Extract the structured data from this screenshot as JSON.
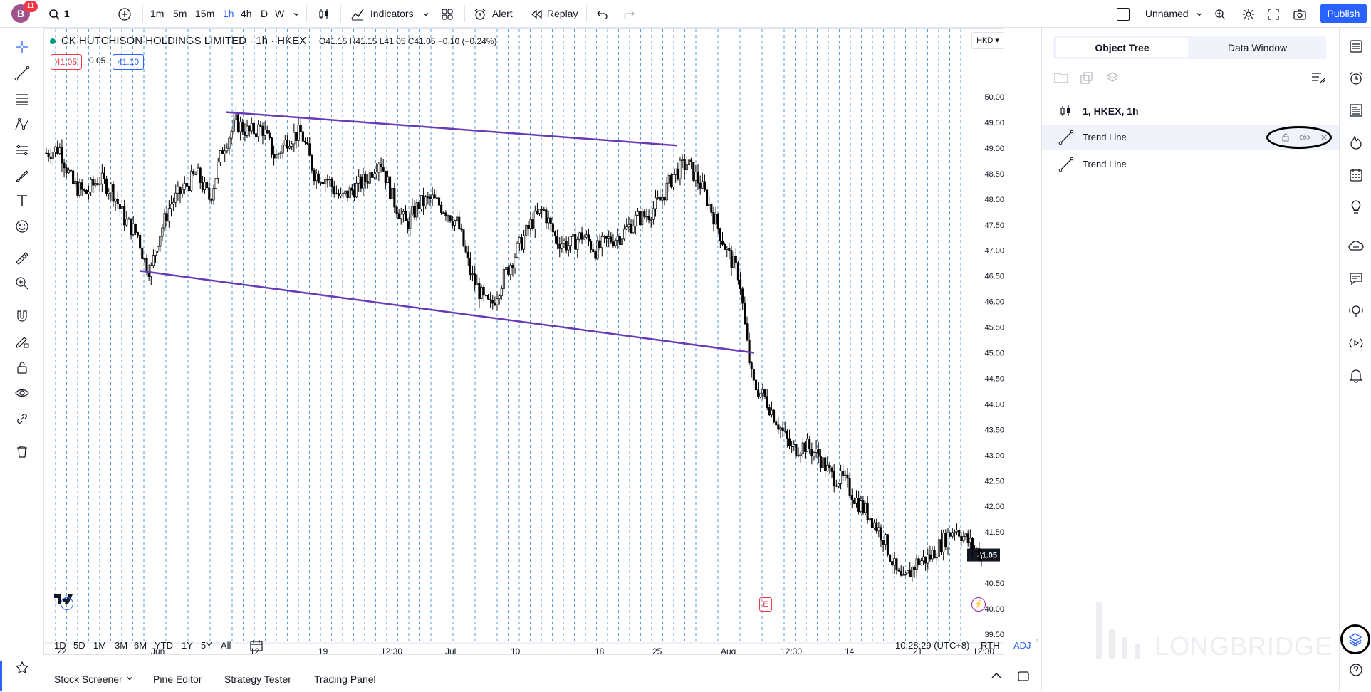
{
  "topbar": {
    "avatar_letter": "B",
    "notif_count": "11",
    "symbol_search": "1",
    "intervals": [
      "1m",
      "5m",
      "15m",
      "1h",
      "4h",
      "D",
      "W"
    ],
    "active_interval": "1h",
    "indicators_label": "Indicators",
    "alert_label": "Alert",
    "replay_label": "Replay",
    "layout_name": "Unnamed",
    "publish_label": "Publish"
  },
  "legend": {
    "title": "CK HUTCHISON HOLDINGS LIMITED · 1h · HKEX",
    "ohlc": "O41.15 H41.15 L41.05 C41.05 −0.10 (−0.24%)",
    "bid": "41.05",
    "spread": "0.05",
    "ask": "41.10"
  },
  "chart": {
    "currency": "HKD",
    "price_ticks": [
      "50.00",
      "49.50",
      "49.00",
      "48.50",
      "48.00",
      "47.50",
      "47.00",
      "46.50",
      "46.00",
      "45.50",
      "45.00",
      "44.50",
      "44.00",
      "43.50",
      "43.00",
      "42.50",
      "42.00",
      "41.50",
      "41.05",
      "40.50",
      "40.00",
      "39.50"
    ],
    "last_price": "41.05",
    "time_ticks": [
      "22",
      "Jun",
      "12",
      "19",
      "12:30",
      "Jul",
      "10",
      "18",
      "25",
      "Aug",
      "12:30",
      "14",
      "21",
      "12:30"
    ],
    "ranges": [
      "1D",
      "5D",
      "1M",
      "3M",
      "6M",
      "YTD",
      "1Y",
      "5Y",
      "All"
    ],
    "clock": "10:28:29 (UTC+8)",
    "session": "RTH",
    "adj": "ADJ",
    "earnings_marker": "E",
    "line_color": "#673ab7"
  },
  "bottom_tabs": [
    "Stock Screener",
    "Pine Editor",
    "Strategy Tester",
    "Trading Panel"
  ],
  "panel": {
    "tabs": [
      "Object Tree",
      "Data Window"
    ],
    "active_tab": "Object Tree",
    "items": [
      {
        "label": "1, HKEX, 1h",
        "icon": "candles-icon"
      },
      {
        "label": "Trend Line",
        "icon": "trend-line-icon",
        "selected": true
      },
      {
        "label": "Trend Line",
        "icon": "trend-line-icon"
      }
    ],
    "watermark": "LONGBRIDGE"
  },
  "chart_data": {
    "type": "candlestick",
    "ylim": [
      39.5,
      50.0
    ],
    "price_path": [
      [
        0,
        48.9
      ],
      [
        2,
        49.0
      ],
      [
        4,
        48.3
      ],
      [
        6,
        48.1
      ],
      [
        8,
        48.4
      ],
      [
        10,
        48.2
      ],
      [
        12,
        47.6
      ],
      [
        14,
        47.3
      ],
      [
        15,
        46.8
      ],
      [
        16,
        46.6
      ],
      [
        17,
        47.2
      ],
      [
        19,
        47.9
      ],
      [
        21,
        48.2
      ],
      [
        23,
        48.5
      ],
      [
        25,
        48.0
      ],
      [
        27,
        49.0
      ],
      [
        29,
        49.5
      ],
      [
        31,
        49.3
      ],
      [
        33,
        49.4
      ],
      [
        35,
        48.8
      ],
      [
        37,
        49.2
      ],
      [
        39,
        49.3
      ],
      [
        41,
        48.5
      ],
      [
        43,
        48.4
      ],
      [
        45,
        48.0
      ],
      [
        47,
        48.2
      ],
      [
        49,
        48.4
      ],
      [
        51,
        48.8
      ],
      [
        53,
        48.0
      ],
      [
        55,
        47.5
      ],
      [
        57,
        47.9
      ],
      [
        59,
        48.0
      ],
      [
        61,
        47.8
      ],
      [
        63,
        47.5
      ],
      [
        65,
        46.5
      ],
      [
        67,
        46.0
      ],
      [
        68,
        45.9
      ],
      [
        70,
        46.5
      ],
      [
        72,
        47.0
      ],
      [
        74,
        47.5
      ],
      [
        76,
        47.8
      ],
      [
        78,
        47.2
      ],
      [
        80,
        47.1
      ],
      [
        82,
        47.3
      ],
      [
        84,
        47.0
      ],
      [
        86,
        47.2
      ],
      [
        88,
        47.3
      ],
      [
        90,
        47.6
      ],
      [
        92,
        47.7
      ],
      [
        94,
        48.0
      ],
      [
        96,
        48.5
      ],
      [
        98,
        48.7
      ],
      [
        100,
        48.3
      ],
      [
        102,
        47.7
      ],
      [
        104,
        47.0
      ],
      [
        106,
        46.5
      ],
      [
        107,
        45.3
      ],
      [
        108,
        44.4
      ],
      [
        110,
        44.1
      ],
      [
        112,
        43.6
      ],
      [
        114,
        43.1
      ],
      [
        116,
        43.2
      ],
      [
        118,
        43.0
      ],
      [
        120,
        42.6
      ],
      [
        122,
        42.5
      ],
      [
        124,
        42.1
      ],
      [
        126,
        41.8
      ],
      [
        128,
        41.4
      ],
      [
        130,
        40.7
      ],
      [
        131,
        40.5
      ],
      [
        133,
        40.9
      ],
      [
        135,
        41.0
      ],
      [
        137,
        41.3
      ],
      [
        139,
        41.6
      ],
      [
        141,
        41.3
      ],
      [
        143,
        41.05
      ]
    ],
    "trend_lines": [
      {
        "from": [
          0.19,
          49.7
        ],
        "to": [
          0.66,
          49.05
        ]
      },
      {
        "from": [
          0.1,
          46.6
        ],
        "to": [
          0.74,
          45.0
        ]
      }
    ]
  }
}
